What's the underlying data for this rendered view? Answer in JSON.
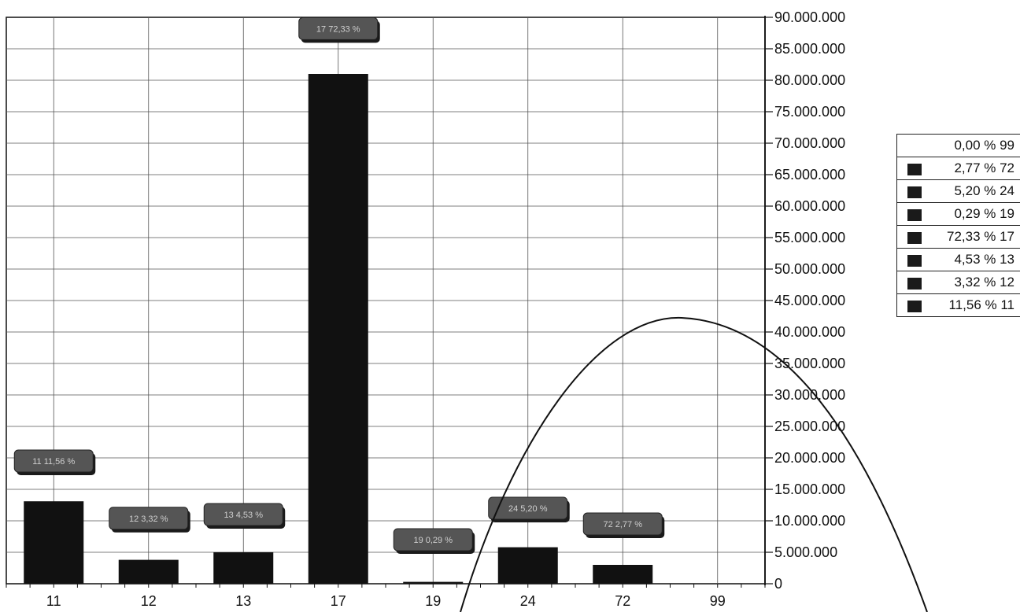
{
  "chart_data": {
    "type": "bar",
    "categories": [
      "11",
      "12",
      "13",
      "17",
      "19",
      "24",
      "72",
      "99"
    ],
    "values": [
      13100000,
      3800000,
      5000000,
      81000000,
      300000,
      5800000,
      3000000,
      0
    ],
    "data_labels": [
      "11 11,56 %",
      "12 3,32 %",
      "13 4,53 %",
      "17 72,33 %",
      "19 0,29 %",
      "24 5,20 %",
      "72 2,77 %",
      ""
    ],
    "label_values": [
      19500000,
      10400000,
      11000000,
      88200000,
      7000000,
      12000000,
      9500000,
      null
    ],
    "y_ticks": [
      "90.000.000",
      "85.000.000",
      "80.000.000",
      "75.000.000",
      "70.000.000",
      "65.000.000",
      "60.000.000",
      "55.000.000",
      "50.000.000",
      "45.000.000",
      "40.000.000",
      "35.000.000",
      "30.000.000",
      "25.000.000",
      "20.000.000",
      "15.000.000",
      "10.000.000",
      "5.000.000",
      "0"
    ],
    "ylim": [
      0,
      90000000
    ],
    "y_axis_side": "right",
    "grid": true,
    "legend_position": "right",
    "legend": [
      {
        "label": "0,00 % 99",
        "swatch": false
      },
      {
        "label": "2,77 % 72",
        "swatch": true
      },
      {
        "label": "5,20 % 24",
        "swatch": true
      },
      {
        "label": "0,29 % 19",
        "swatch": true
      },
      {
        "label": "72,33 % 17",
        "swatch": true
      },
      {
        "label": "4,53 % 13",
        "swatch": true
      },
      {
        "label": "3,32 % 12",
        "swatch": true
      },
      {
        "label": "11,56 % 11",
        "swatch": true
      }
    ],
    "colors": {
      "bar": "#111111",
      "grid": "#555555",
      "label_box": "#555555",
      "axis": "#111111"
    }
  }
}
